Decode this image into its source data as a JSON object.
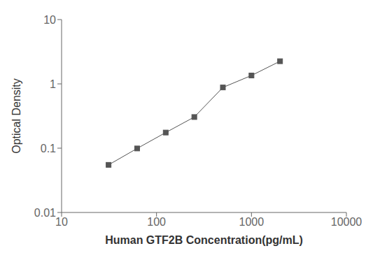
{
  "chart_data": {
    "type": "line",
    "x": [
      31.25,
      62.5,
      125,
      250,
      500,
      1000,
      2000
    ],
    "values": [
      0.055,
      0.099,
      0.175,
      0.305,
      0.88,
      1.35,
      2.25
    ],
    "xlabel": "Human GTF2B Concentration(pg/mL)",
    "ylabel": "Optical Density",
    "xlim": [
      10,
      10000
    ],
    "ylim": [
      0.01,
      10
    ],
    "xticks": [
      10,
      100,
      1000,
      10000
    ],
    "yticks": [
      0.01,
      0.1,
      1,
      10
    ],
    "log": true,
    "grid": false,
    "color": "#555555",
    "marker": "square",
    "line_style": "solid"
  }
}
